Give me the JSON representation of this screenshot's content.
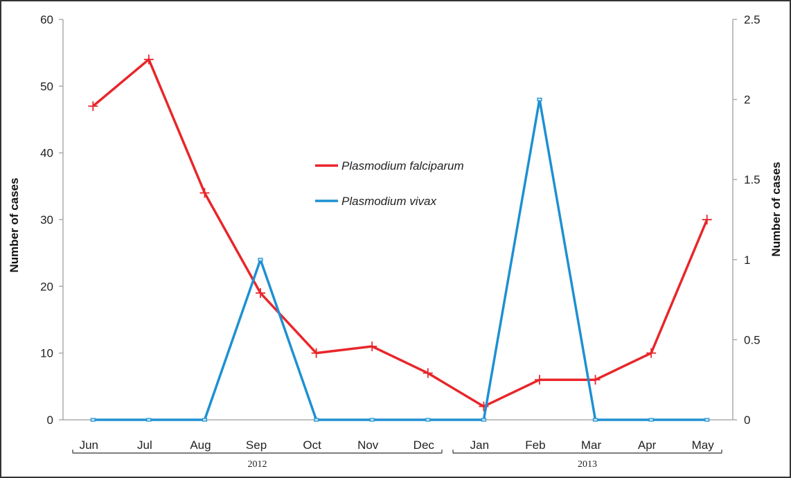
{
  "chart_data": {
    "type": "line",
    "categories": [
      "Jun",
      "Jul",
      "Aug",
      "Sep",
      "Oct",
      "Nov",
      "Dec",
      "Jan",
      "Feb",
      "Mar",
      "Apr",
      "May"
    ],
    "category_groups": [
      {
        "label": "2012",
        "from": "Jun",
        "to": "Dec"
      },
      {
        "label": "2013",
        "from": "Jan",
        "to": "May"
      }
    ],
    "series": [
      {
        "name": "Plasmodium falciparum",
        "axis": "left",
        "color": "#e8262a",
        "marker": "plus",
        "values": [
          47,
          54,
          34,
          19,
          10,
          11,
          7,
          2,
          6,
          6,
          10,
          30
        ]
      },
      {
        "name": "Plasmodium vivax",
        "axis": "right",
        "color": "#1e90d2",
        "marker": "square",
        "values": [
          0,
          0,
          0,
          1,
          0,
          0,
          0,
          0,
          2,
          0,
          0,
          0
        ]
      }
    ],
    "ylabel": "Number of cases",
    "y2label": "Number of cases",
    "ylim": [
      0,
      60
    ],
    "y2lim": [
      0,
      2.5
    ],
    "yticks": [
      0,
      10,
      20,
      30,
      40,
      50,
      60
    ],
    "y2ticks": [
      0,
      0.5,
      1,
      1.5,
      2,
      2.5
    ],
    "legend": "center",
    "grid": false
  }
}
